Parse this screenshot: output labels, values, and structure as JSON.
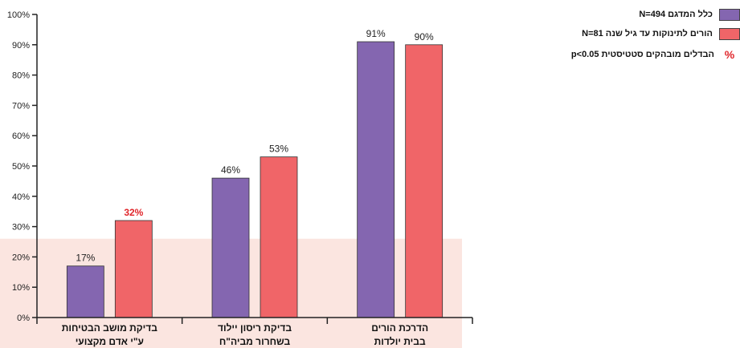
{
  "chart_data": {
    "type": "bar",
    "categories": [
      [
        "בדיקת מושב הבטיחות",
        "ע\"י אדם מקצועי"
      ],
      [
        "בדיקת ריסון יילוד",
        "בשחרור מביה\"ח"
      ],
      [
        "הדרכת הורים",
        "בבית יולדות"
      ]
    ],
    "series": [
      {
        "name": "כלל המדגם  N=494",
        "color": "#8466b0",
        "values": [
          17,
          46,
          91
        ],
        "labels": [
          "17%",
          "46%",
          "91%"
        ],
        "significant": [
          false,
          false,
          false
        ]
      },
      {
        "name": "הורים לתינוקות עד גיל שנה  N=81",
        "color": "#f06568",
        "values": [
          32,
          53,
          90
        ],
        "labels": [
          "32%",
          "53%",
          "90%"
        ],
        "significant": [
          true,
          false,
          false
        ]
      }
    ],
    "ylim": [
      0,
      100
    ],
    "yticks": [
      "0%",
      "10%",
      "20%",
      "30%",
      "40%",
      "50%",
      "60%",
      "70%",
      "80%",
      "90%",
      "100%"
    ],
    "highlight_band": {
      "from": 0,
      "to": 26,
      "color": "#fbe5e0"
    },
    "legend_position": "top-right",
    "significance_note": {
      "symbol": "%",
      "text": "הבדלים מובהקים סטטיסטית  p<0.05",
      "color": "#e0262b"
    }
  }
}
